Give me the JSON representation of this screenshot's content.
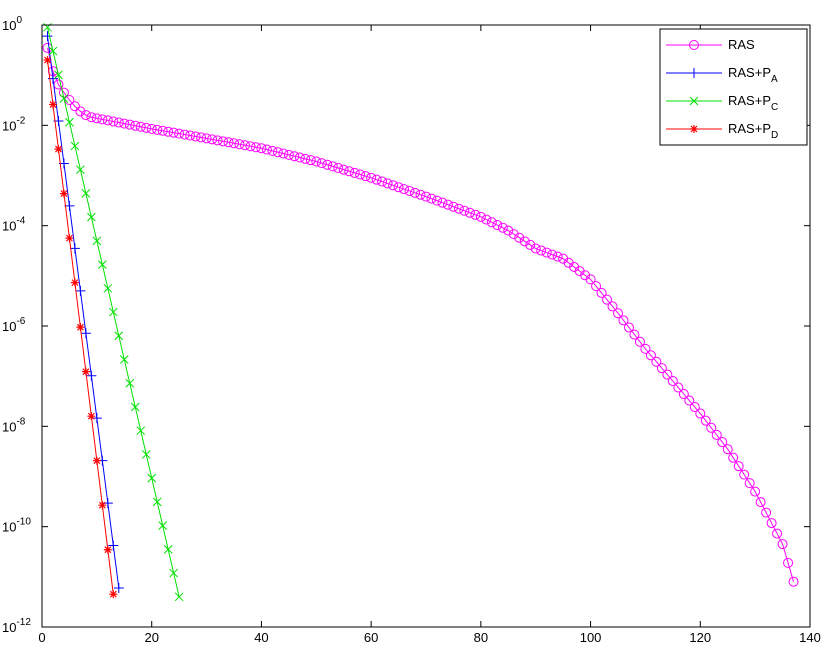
{
  "chart_data": {
    "type": "line",
    "yscale": "log",
    "xlim": [
      0,
      140
    ],
    "ylim": [
      1e-12,
      1
    ],
    "grid": false,
    "legend_position": "top-right",
    "x_ticks": [
      0,
      20,
      40,
      60,
      80,
      100,
      120,
      140
    ],
    "x_tick_labels": [
      "0",
      "20",
      "40",
      "60",
      "80",
      "100",
      "120",
      "140"
    ],
    "y_ticks": [
      1,
      0.01,
      0.0001,
      1e-06,
      1e-08,
      1e-10,
      1e-12
    ],
    "y_tick_labels": [
      {
        "base": "10",
        "exp": "0"
      },
      {
        "base": "10",
        "exp": "-2"
      },
      {
        "base": "10",
        "exp": "-4"
      },
      {
        "base": "10",
        "exp": "-6"
      },
      {
        "base": "10",
        "exp": "-8"
      },
      {
        "base": "10",
        "exp": "-10"
      },
      {
        "base": "10",
        "exp": "-12"
      }
    ],
    "series": [
      {
        "name": "RAS",
        "legend_main": "RAS",
        "legend_sub": "",
        "color": "#ff00ff",
        "marker": "circle",
        "keypoints": [
          [
            1,
            0.35
          ],
          [
            2,
            0.12
          ],
          [
            3,
            0.065
          ],
          [
            4,
            0.045
          ],
          [
            5,
            0.032
          ],
          [
            6,
            0.024
          ],
          [
            7,
            0.019
          ],
          [
            8,
            0.016
          ],
          [
            9,
            0.0145
          ],
          [
            10,
            0.0138
          ],
          [
            20,
            0.0085
          ],
          [
            30,
            0.0055
          ],
          [
            40,
            0.0035
          ],
          [
            50,
            0.0019
          ],
          [
            60,
            0.0009
          ],
          [
            70,
            0.00038
          ],
          [
            80,
            0.00015
          ],
          [
            85,
            8e-05
          ],
          [
            90,
            3.5e-05
          ],
          [
            95,
            2.2e-05
          ],
          [
            100,
            8.5e-06
          ],
          [
            105,
            1.8e-06
          ],
          [
            110,
            3.5e-07
          ],
          [
            115,
            8e-08
          ],
          [
            120,
            1.8e-08
          ],
          [
            125,
            3.5e-09
          ],
          [
            130,
            5e-10
          ],
          [
            135,
            4.5e-11
          ],
          [
            137,
            8e-12
          ]
        ]
      },
      {
        "name": "RAS+P_A",
        "legend_main": "RAS+P",
        "legend_sub": "A",
        "color": "#0000ff",
        "marker": "plus",
        "keypoints": [
          [
            1,
            0.6
          ],
          [
            14,
            6e-12
          ]
        ]
      },
      {
        "name": "RAS+P_C",
        "legend_main": "RAS+P",
        "legend_sub": "C",
        "color": "#00e000",
        "marker": "x",
        "keypoints": [
          [
            1,
            0.9
          ],
          [
            25,
            4e-12
          ]
        ]
      },
      {
        "name": "RAS+P_D",
        "legend_main": "RAS+P",
        "legend_sub": "D",
        "color": "#ff0000",
        "marker": "star",
        "keypoints": [
          [
            1,
            0.2
          ],
          [
            13,
            4.5e-12
          ]
        ]
      }
    ]
  }
}
